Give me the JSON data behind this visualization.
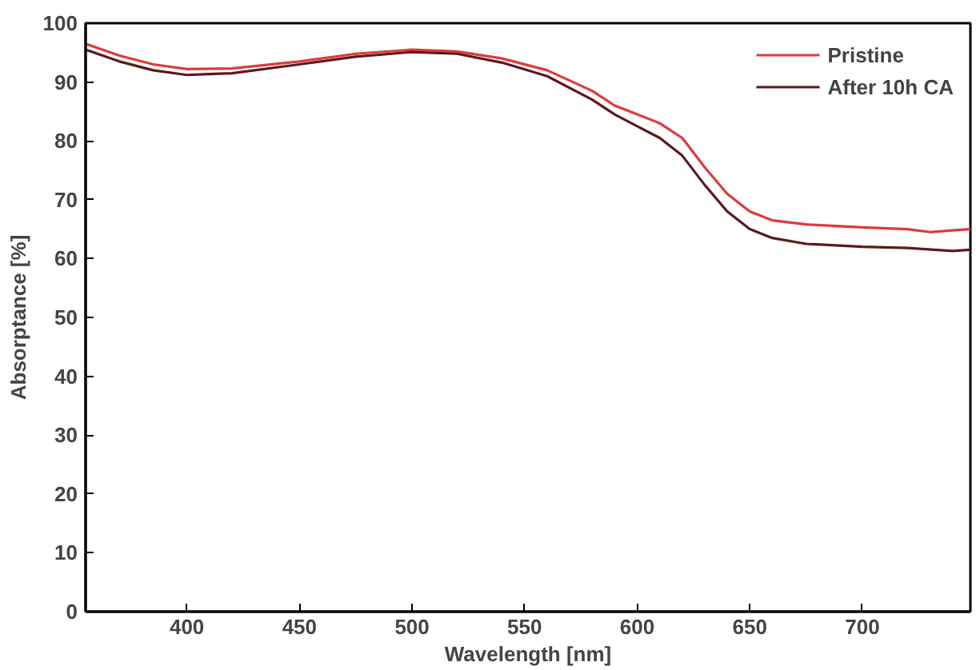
{
  "chart_data": {
    "type": "line",
    "xlabel": "Wavelength [nm]",
    "ylabel": "Absorptance [%]",
    "xlim": [
      355,
      748
    ],
    "xticks": [
      400,
      450,
      500,
      550,
      600,
      650,
      700
    ],
    "ylim": [
      0,
      100
    ],
    "yticks": [
      0,
      10,
      20,
      30,
      40,
      50,
      60,
      70,
      80,
      90,
      100
    ],
    "grid": false,
    "legend": "top right",
    "line_style": "solid",
    "series": [
      {
        "name": "Pristine",
        "color": "#e0393c",
        "x": [
          355,
          370,
          385,
          400,
          420,
          450,
          475,
          500,
          520,
          540,
          560,
          580,
          590,
          600,
          610,
          620,
          630,
          640,
          650,
          660,
          675,
          700,
          720,
          730,
          740,
          748
        ],
        "values": [
          96.5,
          94.5,
          93,
          92.2,
          92.3,
          93.5,
          94.8,
          95.5,
          95.2,
          94,
          92,
          88.5,
          86,
          84.5,
          83,
          80.5,
          75.5,
          71,
          68,
          66.5,
          65.8,
          65.3,
          65,
          64.5,
          64.8,
          65
        ]
      },
      {
        "name": "After 10h CA",
        "color": "#5a1a1e",
        "x": [
          355,
          370,
          385,
          400,
          420,
          450,
          475,
          500,
          520,
          540,
          560,
          580,
          590,
          600,
          610,
          620,
          630,
          640,
          650,
          660,
          675,
          700,
          720,
          740,
          748
        ],
        "values": [
          95.5,
          93.5,
          92,
          91.2,
          91.5,
          93,
          94.3,
          95.1,
          94.8,
          93.3,
          91,
          87,
          84.5,
          82.5,
          80.5,
          77.5,
          72.5,
          68,
          65,
          63.5,
          62.5,
          62,
          61.8,
          61.3,
          61.5
        ]
      }
    ]
  }
}
